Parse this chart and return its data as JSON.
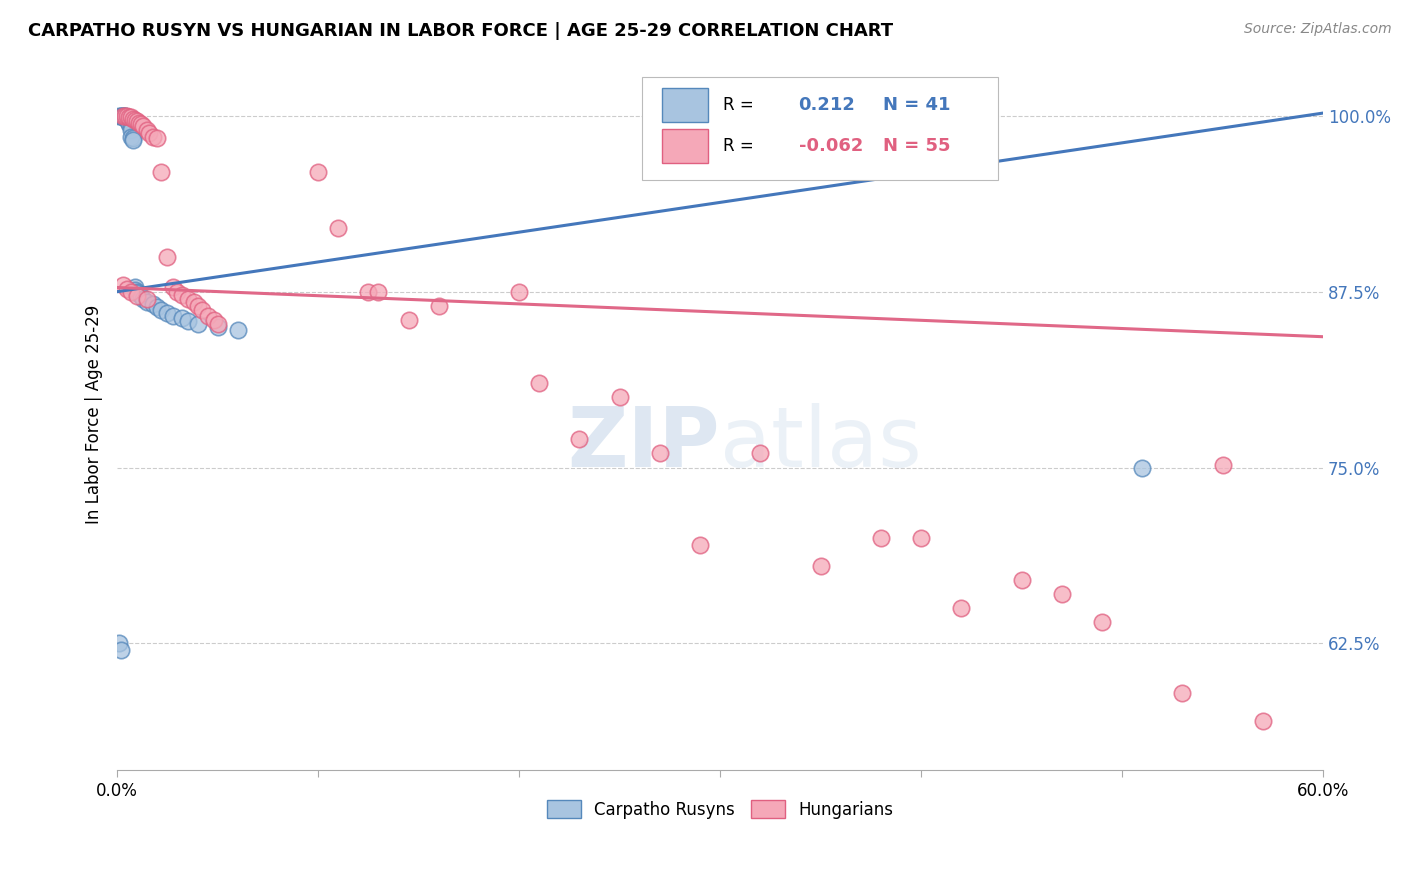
{
  "title": "CARPATHO RUSYN VS HUNGARIAN IN LABOR FORCE | AGE 25-29 CORRELATION CHART",
  "source": "Source: ZipAtlas.com",
  "ylabel": "In Labor Force | Age 25-29",
  "xmin": 0.0,
  "xmax": 0.6,
  "ymin": 0.535,
  "ymax": 1.04,
  "yticks": [
    0.625,
    0.75,
    0.875,
    1.0
  ],
  "ytick_labels": [
    "62.5%",
    "75.0%",
    "87.5%",
    "100.0%"
  ],
  "xticks": [
    0.0,
    0.1,
    0.2,
    0.3,
    0.4,
    0.5,
    0.6
  ],
  "xtick_labels_show": [
    "0.0%",
    "",
    "",
    "",
    "",
    "",
    "60.0%"
  ],
  "blue_R": 0.212,
  "blue_N": 41,
  "pink_R": -0.062,
  "pink_N": 55,
  "blue_fill": "#A8C4E0",
  "blue_edge": "#5588BB",
  "pink_fill": "#F5A8B8",
  "pink_edge": "#E06080",
  "trend_blue_color": "#4477BB",
  "trend_pink_color": "#E06888",
  "watermark_color": "#C8D8EA",
  "legend_blue": "Carpatho Rusyns",
  "legend_pink": "Hungarians",
  "blue_trend_y0": 0.875,
  "blue_trend_y1": 1.002,
  "pink_trend_y0": 0.878,
  "pink_trend_y1": 0.843,
  "blue_x": [
    0.001,
    0.002,
    0.002,
    0.003,
    0.003,
    0.003,
    0.004,
    0.004,
    0.004,
    0.005,
    0.005,
    0.005,
    0.006,
    0.006,
    0.006,
    0.007,
    0.007,
    0.007,
    0.008,
    0.008,
    0.009,
    0.009,
    0.01,
    0.01,
    0.012,
    0.013,
    0.015,
    0.018,
    0.02,
    0.022,
    0.025,
    0.028,
    0.032,
    0.035,
    0.04,
    0.05,
    0.06,
    0.38,
    0.51,
    0.001,
    0.002
  ],
  "blue_y": [
    1.0,
    1.0,
    1.0,
    1.0,
    1.0,
    0.999,
    1.0,
    1.0,
    0.999,
    0.998,
    0.998,
    0.997,
    0.996,
    0.995,
    0.994,
    0.993,
    0.99,
    0.985,
    0.984,
    0.983,
    0.878,
    0.876,
    0.875,
    0.874,
    0.872,
    0.87,
    0.868,
    0.866,
    0.864,
    0.862,
    0.86,
    0.858,
    0.856,
    0.854,
    0.852,
    0.85,
    0.848,
    1.0,
    0.75,
    0.625,
    0.62
  ],
  "pink_x": [
    0.003,
    0.004,
    0.005,
    0.006,
    0.007,
    0.008,
    0.009,
    0.01,
    0.011,
    0.012,
    0.013,
    0.015,
    0.016,
    0.018,
    0.02,
    0.022,
    0.025,
    0.028,
    0.03,
    0.032,
    0.035,
    0.038,
    0.04,
    0.042,
    0.045,
    0.048,
    0.05,
    0.1,
    0.11,
    0.125,
    0.13,
    0.145,
    0.16,
    0.2,
    0.21,
    0.23,
    0.25,
    0.27,
    0.29,
    0.32,
    0.35,
    0.38,
    0.4,
    0.42,
    0.45,
    0.47,
    0.49,
    0.53,
    0.55,
    0.57,
    0.003,
    0.005,
    0.007,
    0.01,
    0.015
  ],
  "pink_y": [
    1.0,
    1.0,
    1.0,
    0.999,
    0.999,
    0.998,
    0.997,
    0.996,
    0.995,
    0.994,
    0.993,
    0.99,
    0.988,
    0.985,
    0.984,
    0.96,
    0.9,
    0.878,
    0.875,
    0.873,
    0.87,
    0.868,
    0.865,
    0.862,
    0.858,
    0.855,
    0.852,
    0.96,
    0.92,
    0.875,
    0.875,
    0.855,
    0.865,
    0.875,
    0.81,
    0.77,
    0.8,
    0.76,
    0.695,
    0.76,
    0.68,
    0.7,
    0.7,
    0.65,
    0.67,
    0.66,
    0.64,
    0.59,
    0.752,
    0.57,
    0.88,
    0.877,
    0.875,
    0.872,
    0.87
  ]
}
